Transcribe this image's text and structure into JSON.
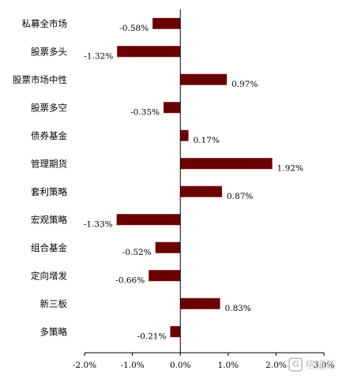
{
  "chart_data": {
    "type": "bar",
    "orientation": "horizontal",
    "categories": [
      "私募全市场",
      "股票多头",
      "股票市场中性",
      "股票多空",
      "债券基金",
      "管理期货",
      "套利策略",
      "宏观策略",
      "组合基金",
      "定向增发",
      "新三板",
      "多策略"
    ],
    "values": [
      -0.58,
      -1.32,
      0.97,
      -0.35,
      0.17,
      1.92,
      0.87,
      -1.33,
      -0.52,
      -0.66,
      0.83,
      -0.21
    ],
    "value_labels": [
      "-0.58%",
      "-1.32%",
      "0.97%",
      "-0.35%",
      "0.17%",
      "1.92%",
      "0.87%",
      "-1.33%",
      "-0.52%",
      "-0.66%",
      "0.83%",
      "-0.21%"
    ],
    "xlim": [
      -2.0,
      3.0
    ],
    "xticks": [
      -2.0,
      -1.0,
      0.0,
      1.0,
      2.0,
      3.0
    ],
    "xtick_labels": [
      "-2.0%",
      "-1.0%",
      "0.0%",
      "1.0%",
      "2.0%",
      "3.0%"
    ],
    "bar_color": "#6b0000",
    "grid": false,
    "title": "",
    "xlabel": "",
    "ylabel": ""
  },
  "watermark": {
    "icon": "G",
    "text": "格隆汇"
  }
}
